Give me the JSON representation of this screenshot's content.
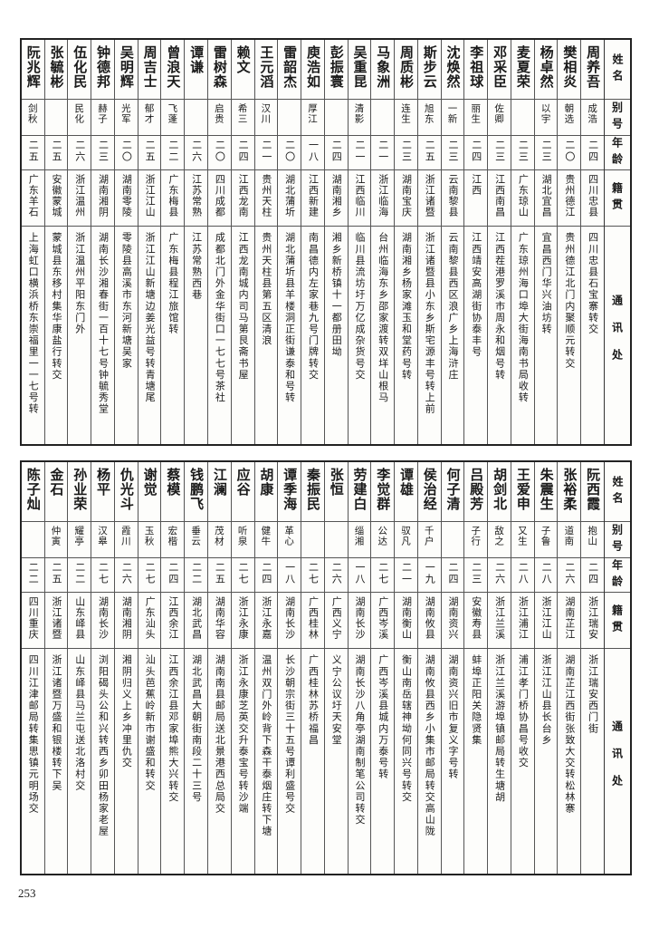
{
  "headers": {
    "name": "姓名",
    "alias": "别号",
    "age": "年龄",
    "origin": "籍贯",
    "address": "通讯处"
  },
  "top_table": [
    {
      "name": "周养吾",
      "alias": "成浩",
      "age": "二四",
      "origin": "四川忠县",
      "address": "四川忠县石宝寨转交"
    },
    {
      "name": "樊相炎",
      "alias": "朝选",
      "age": "二〇",
      "origin": "贵州德江",
      "address": "贵州德江北门内聚顺元转交"
    },
    {
      "name": "杨卓然",
      "alias": "以宇",
      "age": "二三",
      "origin": "湖北宜昌",
      "address": "宜昌西门华兴油坊转"
    },
    {
      "name": "麦夏荣",
      "alias": "",
      "age": "二三",
      "origin": "广东琼山",
      "address": "广东琼州海口埠大街海南书局收转"
    },
    {
      "name": "邓采臣",
      "alias": "佐卿",
      "age": "二三",
      "origin": "江西南昌",
      "address": "江西茬港罗溪市周永和烟号转"
    },
    {
      "name": "李祖球",
      "alias": "丽生",
      "age": "二四",
      "origin": "江西",
      "address": "江西靖安高湖街协泰丰号"
    },
    {
      "name": "沈焕然",
      "alias": "一新",
      "age": "二三",
      "origin": "云南黎县",
      "address": "云南黎县西区浪广乡上海浒庄"
    },
    {
      "name": "斯步云",
      "alias": "旭东",
      "age": "二五",
      "origin": "浙江诸暨",
      "address": "浙江诸暨县小东乡斯宅源丰号转上前"
    },
    {
      "name": "周质彬",
      "alias": "连生",
      "age": "二三",
      "origin": "湖南宝庆",
      "address": "湖南湘乡杨家滩玉和堂药号转"
    },
    {
      "name": "马象洲",
      "alias": "",
      "age": "二一",
      "origin": "浙江临海",
      "address": "台州临海东乡邵家渡转双垟山根马"
    },
    {
      "name": "吴重昆",
      "alias": "清影",
      "age": "二一",
      "origin": "江西临川",
      "address": "临川县流坊圩万亿成杂货号交"
    },
    {
      "name": "彭振寰",
      "alias": "",
      "age": "二四",
      "origin": "湖南湘乡",
      "address": "湘乡新桥镇十一都册田坳"
    },
    {
      "name": "庾浩如",
      "alias": "厚江",
      "age": "一八",
      "origin": "江西新建",
      "address": "南昌德内左家巷九号门牌转交"
    },
    {
      "name": "雷韶杰",
      "alias": "",
      "age": "二〇",
      "origin": "湖北蒲圻",
      "address": "湖北蒲圻县羊楼洞正街谦泰和号转"
    },
    {
      "name": "王元滔",
      "alias": "汉川",
      "age": "二一",
      "origin": "贵州天柱",
      "address": "贵州天柱县第五区清浪"
    },
    {
      "name": "赖文",
      "alias": "希三",
      "age": "二四",
      "origin": "江西龙南",
      "address": "江西龙南城内司马第艮斋书屋"
    },
    {
      "name": "雷树森",
      "alias": "启贵",
      "age": "二〇",
      "origin": "四川成都",
      "address": "成都北门外金华街口一七七号茶社"
    },
    {
      "name": "谭谦",
      "alias": "",
      "age": "二六",
      "origin": "江苏常熟",
      "address": "江苏常熟西巷"
    },
    {
      "name": "曾浪天",
      "alias": "飞蓬",
      "age": "二二",
      "origin": "广东梅县",
      "address": "广东梅县程江旅馆转"
    },
    {
      "name": "周吉士",
      "alias": "郁才",
      "age": "二五",
      "origin": "浙江江山",
      "address": "浙江江山新塘边姜光益号转青塘尾"
    },
    {
      "name": "吴明辉",
      "alias": "光军",
      "age": "二〇",
      "origin": "湖南零陵",
      "address": "零陵县高溪市东河新塘吴家"
    },
    {
      "name": "钟德邦",
      "alias": "赫子",
      "age": "二三",
      "origin": "湖南湘阴",
      "address": "湖南长沙湘春街一百十七号钟毓秀堂"
    },
    {
      "name": "伍化民",
      "alias": "民化",
      "age": "二六",
      "origin": "浙江温州",
      "address": "浙江温州平阳东门外"
    },
    {
      "name": "张毓彬",
      "alias": "",
      "age": "二五",
      "origin": "安徽蒙城",
      "address": "蒙城县东移村集华康盐行转交"
    },
    {
      "name": "阮兆辉",
      "alias": "剑秋",
      "age": "二五",
      "origin": "广东羊石",
      "address": "上海虹口横浜桥东崇福里一一七号转"
    }
  ],
  "bottom_table": [
    {
      "name": "阮西霞",
      "alias": "抱山",
      "age": "二四",
      "origin": "浙江瑞安",
      "address": "浙江瑞安西门街"
    },
    {
      "name": "张裕柔",
      "alias": "道南",
      "age": "二六",
      "origin": "湖南芷江",
      "address": "湖南芷江西街张致大交转松林寨"
    },
    {
      "name": "朱震生",
      "alias": "子鲁",
      "age": "二八",
      "origin": "浙江江山",
      "address": "浙江江山县长台乡"
    },
    {
      "name": "王爱申",
      "alias": "又生",
      "age": "二八",
      "origin": "浙江浦江",
      "address": "浦江孝门桥协昌号收交"
    },
    {
      "name": "胡剑北",
      "alias": "敌之",
      "age": "二六",
      "origin": "浙江兰溪",
      "address": "浙江兰溪游埠镇邮局转生塘胡"
    },
    {
      "name": "吕殿芳",
      "alias": "子行",
      "age": "二三",
      "origin": "安徽寿县",
      "address": "蚌埠正阳关隐贤集"
    },
    {
      "name": "何子清",
      "alias": "",
      "age": "二四",
      "origin": "湖南资兴",
      "address": "湖南资兴旧市复义字号转"
    },
    {
      "name": "侯治经",
      "alias": "千户",
      "age": "一九",
      "origin": "湖南攸县",
      "address": "湖南攸县西乡小集市邮局转交高山陇"
    },
    {
      "name": "谭雄",
      "alias": "驭凡",
      "age": "二一",
      "origin": "湖南衡山",
      "address": "衡山南岳辖神坳何同兴号转交"
    },
    {
      "name": "李觉群",
      "alias": "公达",
      "age": "二七",
      "origin": "广西岑溪",
      "address": "广西岑溪县城内万泰号转"
    },
    {
      "name": "劳建白",
      "alias": "缁湘",
      "age": "一八",
      "origin": "湖南长沙",
      "address": "湖南长沙八角亭湖南制笔公司转交"
    },
    {
      "name": "张恒",
      "alias": "",
      "age": "二六",
      "origin": "广西义宁",
      "address": "义宁公议圩天安堂"
    },
    {
      "name": "秦振民",
      "alias": "",
      "age": "二七",
      "origin": "广西桂林",
      "address": "广西桂林苏桥福昌"
    },
    {
      "name": "谭季海",
      "alias": "革心",
      "age": "一八",
      "origin": "湖南长沙",
      "address": "长沙朝宗街三十五号谭利盛号交"
    },
    {
      "name": "胡康",
      "alias": "健牛",
      "age": "二四",
      "origin": "浙江永嘉",
      "address": "温州双门外岭背下森干泰烟庄转下塘"
    },
    {
      "name": "应谷",
      "alias": "听泉",
      "age": "二七",
      "origin": "浙江永康",
      "address": "浙江永康芝英交升泰宝号转沙端"
    },
    {
      "name": "江澜",
      "alias": "茂材",
      "age": "二五",
      "origin": "湖南华容",
      "address": "湖南南县邮局送北景港西总局交"
    },
    {
      "name": "钱鹏飞",
      "alias": "垂云",
      "age": "二二",
      "origin": "湖北武昌",
      "address": "湖北武昌大朝街南段二十三号"
    },
    {
      "name": "蔡模",
      "alias": "宏楷",
      "age": "二四",
      "origin": "江西余江",
      "address": "江西余江县邓家埠熊大兴转交"
    },
    {
      "name": "谢觉",
      "alias": "玉秋",
      "age": "二七",
      "origin": "广东汕头",
      "address": "汕头芭蕉岭新市谢盛和转交"
    },
    {
      "name": "仇光斗",
      "alias": "霞川",
      "age": "二六",
      "origin": "湖南湘阴",
      "address": "湘阴归义上乡冲里仇交"
    },
    {
      "name": "杨平",
      "alias": "汉皋",
      "age": "二七",
      "origin": "湖南长沙",
      "address": "浏阳碣头公和兴转西乡卯田杨家老屋"
    },
    {
      "name": "孙业荣",
      "alias": "耀亭",
      "age": "二二",
      "origin": "山东峄县",
      "address": "山东峄县马兰屯送北洛村交"
    },
    {
      "name": "金石",
      "alias": "仲寅",
      "age": "二五",
      "origin": "浙江诸暨",
      "address": "浙江诸暨万盛和银楼转下吴"
    },
    {
      "name": "陈子灿",
      "alias": "",
      "age": "二二",
      "origin": "四川重庆",
      "address": "四川江津邮局转集思镇元明场交"
    }
  ],
  "page_number": "253"
}
